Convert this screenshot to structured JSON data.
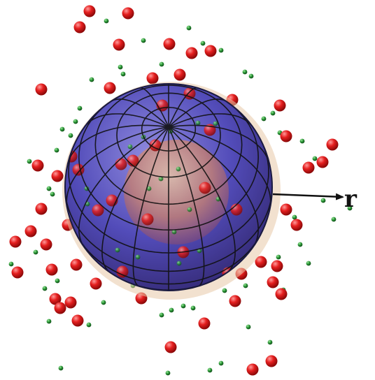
{
  "labels": {
    "radius": "r"
  },
  "colors": {
    "background": "#ffffff",
    "sphere_fill": "#4a44b8",
    "sphere_edge": "#e8c9a8",
    "core_fill": "#c8806e",
    "grid_line": "#111111",
    "big_particle": "#e51f1f",
    "small_particle": "#2e9a3a",
    "arrow": "#111111"
  },
  "icons": {
    "big_particle": "red-sphere",
    "small_particle": "green-sphere"
  }
}
